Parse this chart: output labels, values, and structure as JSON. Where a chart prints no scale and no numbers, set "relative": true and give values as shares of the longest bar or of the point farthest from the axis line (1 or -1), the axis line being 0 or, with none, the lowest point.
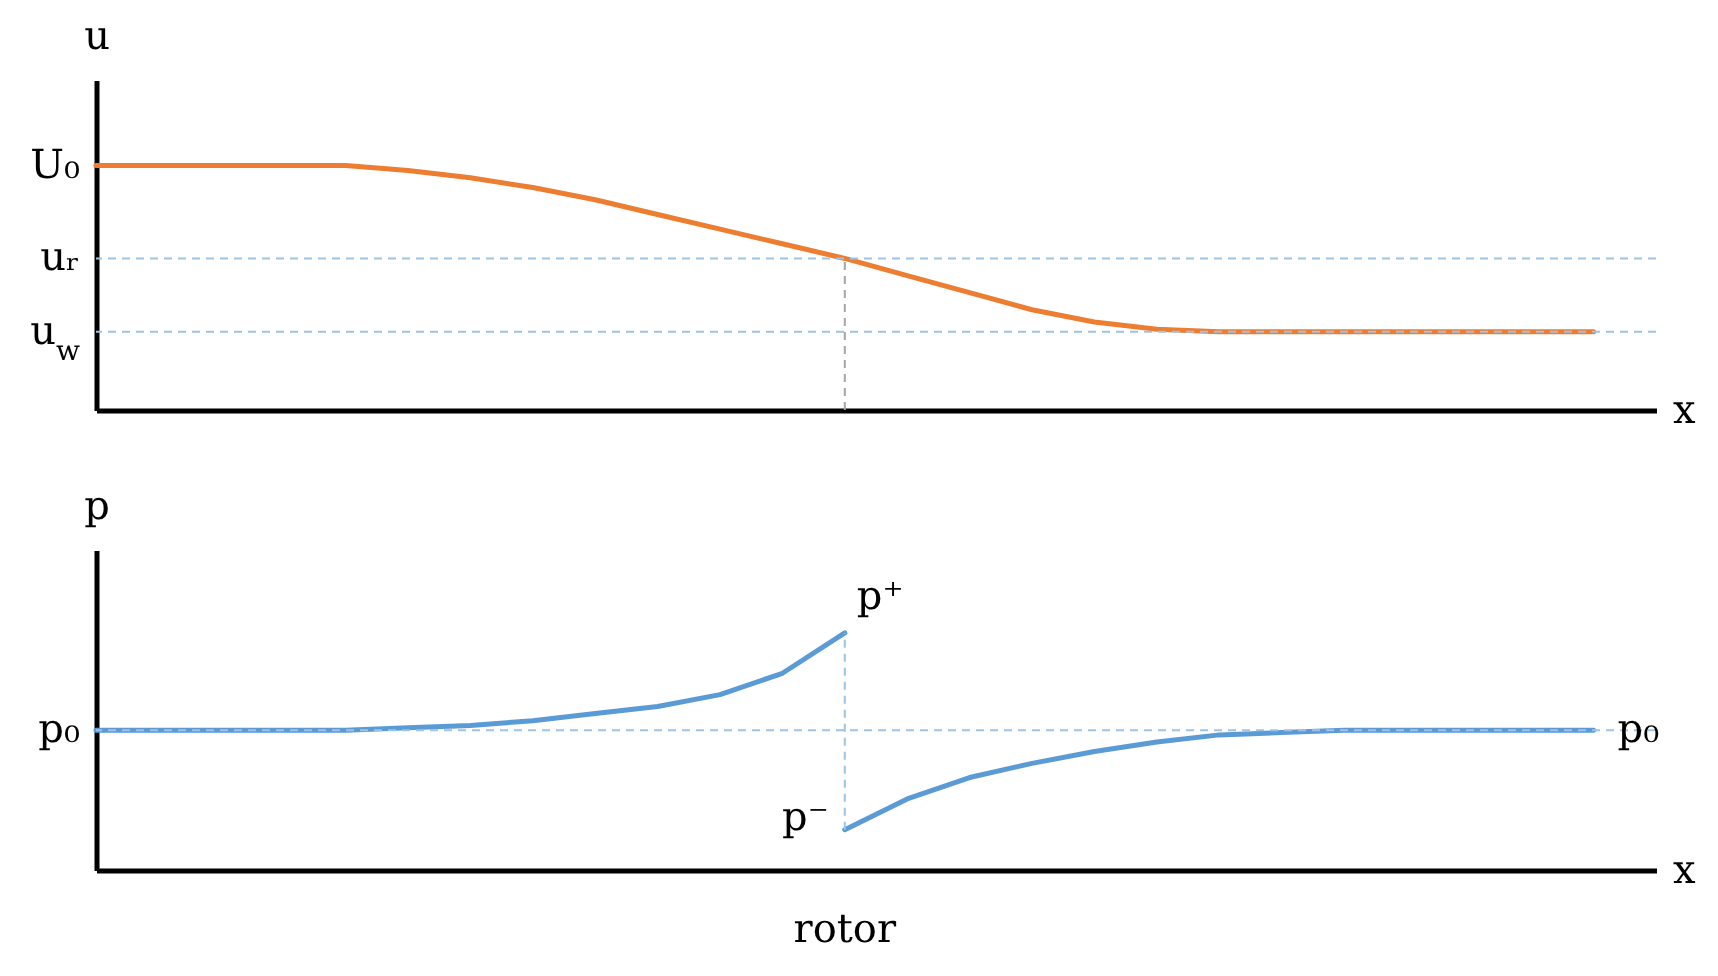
{
  "chart_data": [
    {
      "type": "line",
      "relative": true,
      "xlabel": "x",
      "ylabel": "u",
      "categories": [
        null,
        null,
        null,
        null,
        null,
        null,
        null,
        null,
        null,
        null,
        null,
        null,
        null,
        null,
        null,
        null,
        null,
        null,
        null,
        null,
        null,
        null,
        null,
        null,
        null,
        null
      ],
      "series": [
        {
          "color": "#ed7d31",
          "values": [
            1,
            1,
            1,
            1,
            1,
            0.98,
            0.95,
            0.91,
            0.86,
            0.8,
            0.74,
            0.68,
            0.62,
            0.55,
            0.48,
            0.41,
            0.36,
            0.33,
            0.32,
            0.32,
            0.32,
            0.32,
            0.32,
            0.32,
            0.32,
            null
          ]
        }
      ],
      "ref_lines": [
        {
          "axis": "y",
          "value": 0.62,
          "label": "uᵣ",
          "color": "#9dc3e6",
          "line_style": "dashed"
        },
        {
          "axis": "y",
          "value": 0.32,
          "label": "u$_{w}$",
          "color": "#9dc3e6",
          "line_style": "dashed"
        }
      ],
      "annotations": [
        "U₀"
      ]
    },
    {
      "type": "line",
      "relative": true,
      "xlabel": "x",
      "ylabel": "p",
      "categories": [
        null,
        null,
        null,
        null,
        null,
        null,
        null,
        null,
        null,
        null,
        null,
        null,
        null,
        null,
        null,
        null,
        null,
        null,
        null,
        null,
        null,
        null,
        null,
        null,
        null,
        null
      ],
      "series": [
        {
          "color": "#5b9bd5",
          "values": [
            0.59,
            0.59,
            0.59,
            0.59,
            0.59,
            0.6,
            0.61,
            0.63,
            0.66,
            0.69,
            0.74,
            0.83,
            1,
            null,
            null,
            null,
            null,
            null,
            null,
            null,
            null,
            null,
            null,
            null,
            null,
            null
          ]
        },
        {
          "name": "p₀",
          "color": "#5b9bd5",
          "values": [
            null,
            null,
            null,
            null,
            null,
            null,
            null,
            null,
            null,
            null,
            null,
            null,
            0.17,
            0.3,
            0.39,
            0.45,
            0.5,
            0.54,
            0.57,
            0.58,
            0.59,
            0.59,
            0.59,
            0.59,
            0.59,
            null
          ]
        }
      ],
      "ref_lines": [
        {
          "axis": "y",
          "value": 0.59,
          "label": "p₀",
          "color": "#9dc3e6",
          "line_style": "dashed"
        }
      ],
      "annotations": [
        "p⁺",
        "p⁻",
        "rotor"
      ]
    }
  ]
}
